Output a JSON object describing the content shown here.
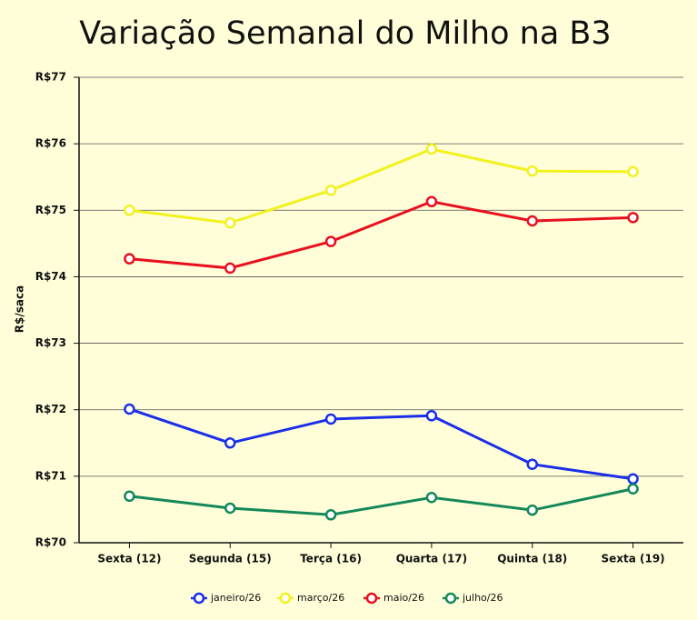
{
  "chart_data": {
    "type": "line",
    "title": "Variação Semanal do Milho na B3",
    "y_label": "R$/saca",
    "categories": [
      "Sexta (12)",
      "Segunda (15)",
      "Terça (16)",
      "Quarta (17)",
      "Quinta (18)",
      "Sexta (19)"
    ],
    "series": [
      {
        "name": "janeiro/26",
        "color": "#1a2ee8",
        "values": [
          72.01,
          71.5,
          71.86,
          71.91,
          71.18,
          70.96
        ]
      },
      {
        "name": "março/26",
        "color": "#f2f21e",
        "values": [
          75.0,
          74.81,
          75.3,
          75.92,
          75.59,
          75.58
        ]
      },
      {
        "name": "maio/26",
        "color": "#e8101e",
        "values": [
          74.27,
          74.13,
          74.53,
          75.13,
          74.84,
          74.89
        ]
      },
      {
        "name": "julho/26",
        "color": "#14885a",
        "values": [
          70.7,
          70.52,
          70.42,
          70.68,
          70.49,
          70.81
        ]
      }
    ],
    "ylim": [
      70,
      77
    ],
    "yticks": [
      {
        "value": 70,
        "label": "R$70"
      },
      {
        "value": 71,
        "label": "R$71"
      },
      {
        "value": 72,
        "label": "R$72"
      },
      {
        "value": 73,
        "label": "R$73"
      },
      {
        "value": 74,
        "label": "R$74"
      },
      {
        "value": 75,
        "label": "R$75"
      },
      {
        "value": 76,
        "label": "R$76"
      },
      {
        "value": 77,
        "label": "R$77"
      }
    ],
    "grid": true,
    "legend": "bottom"
  }
}
